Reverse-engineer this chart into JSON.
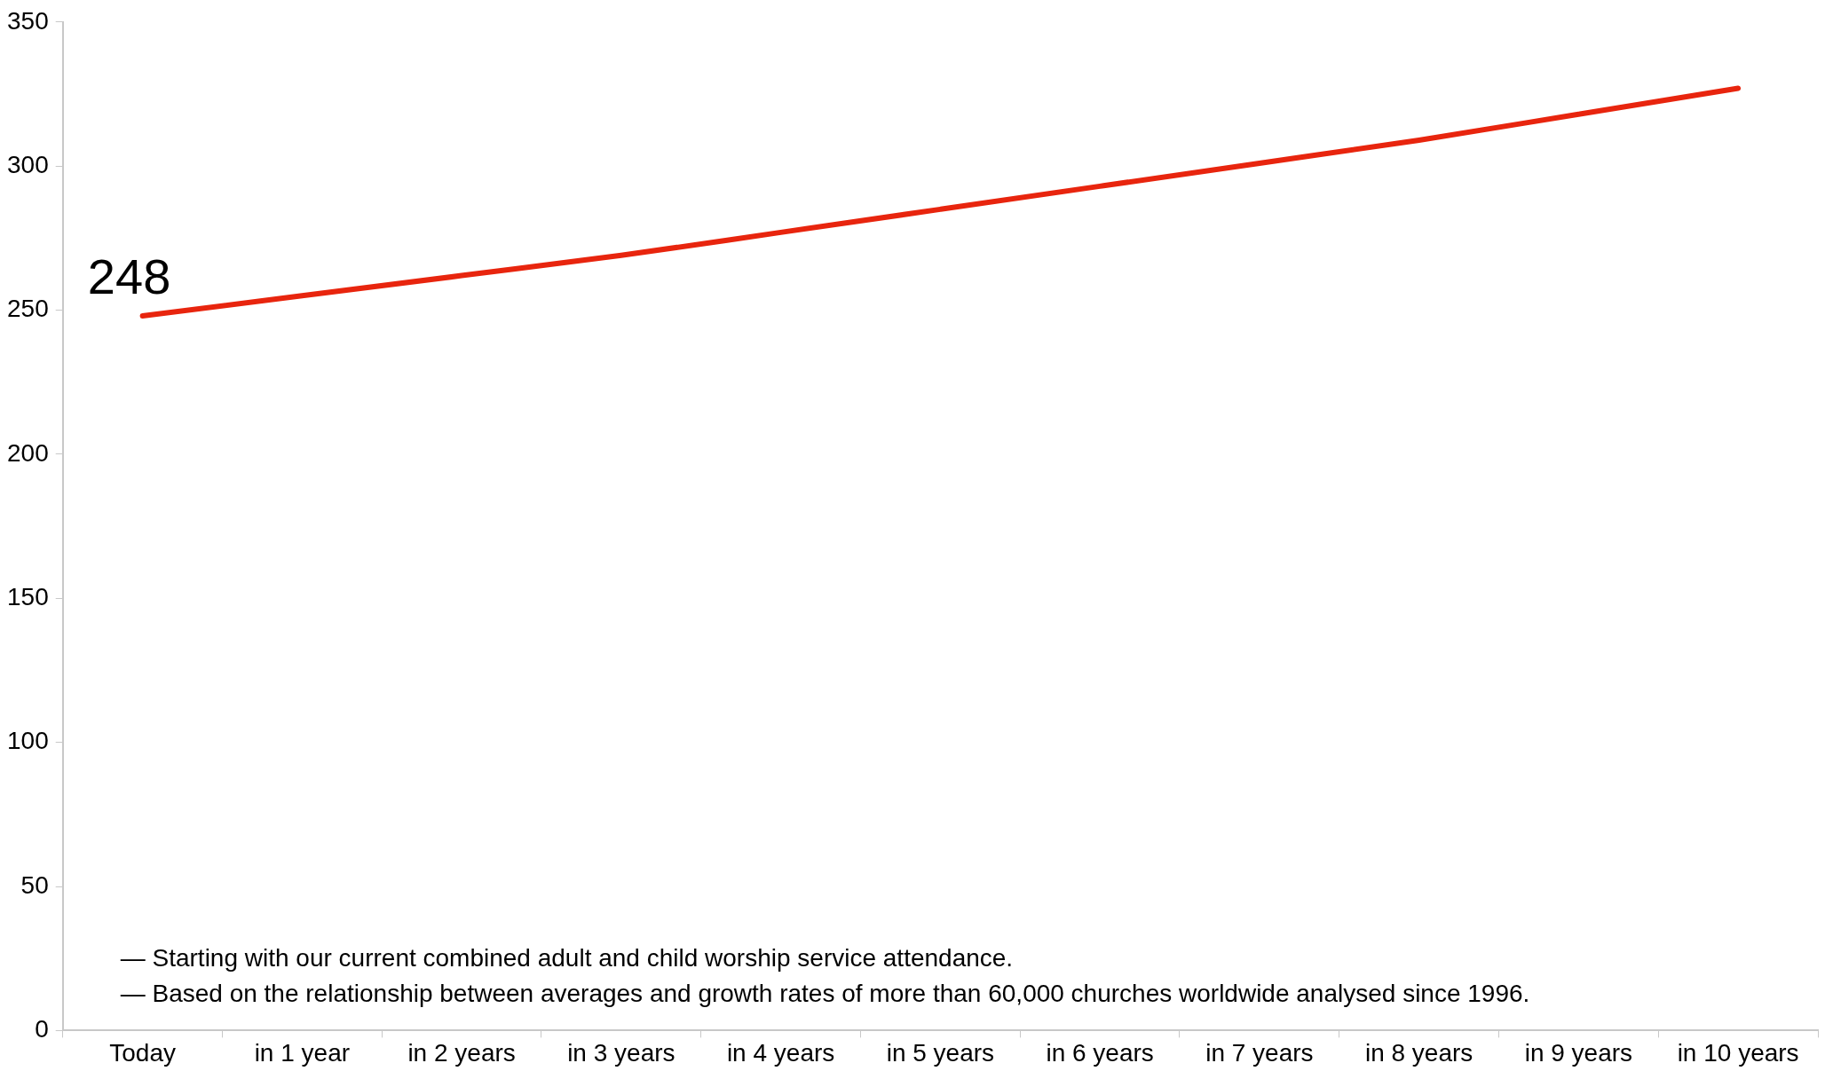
{
  "chart_data": {
    "type": "line",
    "categories": [
      "Today",
      "in 1 year",
      "in 2 years",
      "in 3 years",
      "in 4 years",
      "in 5 years",
      "in 6 years",
      "in 7 years",
      "in 8 years",
      "in 9 years",
      "in 10 years"
    ],
    "series": [
      {
        "color": "#e8250e",
        "values": [
          248,
          255,
          262,
          269,
          277,
          285,
          293,
          301,
          309,
          318,
          327
        ],
        "value_labels": [
          "248",
          null,
          null,
          null,
          null,
          null,
          null,
          null,
          null,
          null,
          null
        ]
      }
    ],
    "ylim": [
      0,
      350
    ],
    "yticks": [
      0,
      50,
      100,
      150,
      200,
      250,
      300,
      350
    ],
    "annotations": [
      "— Starting with our current combined adult and child worship service attendance.",
      "— Based on the relationship between averages and growth rates of more than 60,000 churches worldwide analysed since 1996."
    ]
  }
}
